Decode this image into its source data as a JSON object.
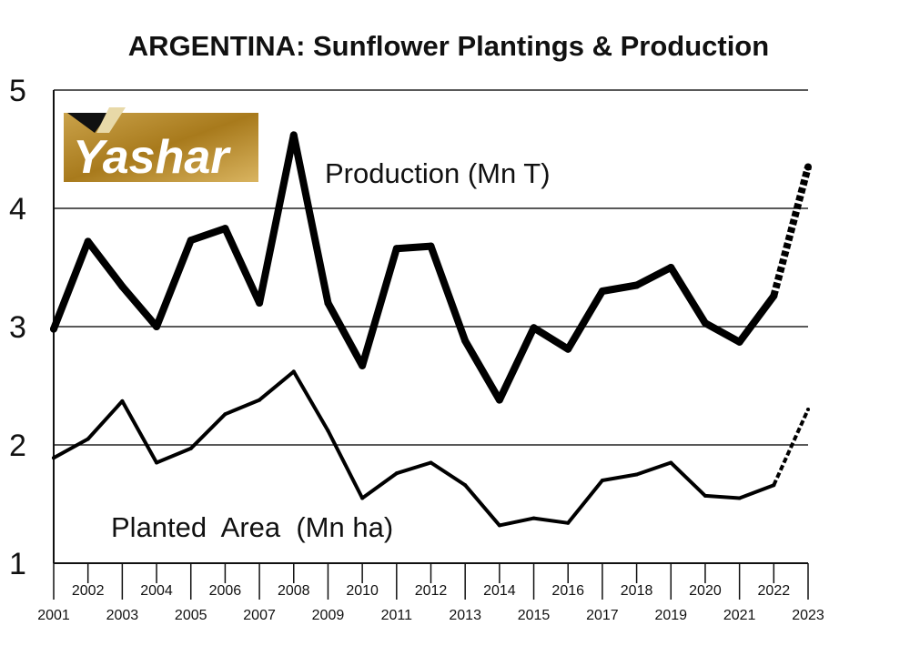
{
  "chart_data": {
    "type": "line",
    "title": "ARGENTINA: Sunflower Plantings & Production",
    "xlabel": "",
    "ylabel": "",
    "ylim": [
      1,
      5
    ],
    "yticks": [
      "1",
      "2",
      "3",
      "4",
      "5"
    ],
    "x": [
      "2001",
      "2002",
      "2003",
      "2004",
      "2005",
      "2006",
      "2007",
      "2008",
      "2009",
      "2010",
      "2011",
      "2012",
      "2013",
      "2014",
      "2015",
      "2016",
      "2017",
      "2018",
      "2019",
      "2020",
      "2021",
      "2022",
      "2023"
    ],
    "grid": true,
    "series": [
      {
        "name": "Production (Mn T)",
        "label": "Production (Mn T)",
        "values": [
          2.98,
          3.72,
          3.34,
          3.0,
          3.73,
          3.83,
          3.2,
          4.62,
          3.2,
          2.67,
          3.66,
          3.68,
          2.88,
          2.38,
          2.99,
          2.81,
          3.3,
          3.35,
          3.5,
          3.03,
          2.87,
          3.26,
          4.35
        ],
        "forecast_from_index": 21
      },
      {
        "name": "Planted Area (Mn ha)",
        "label": "Planted  Area  (Mn ha)",
        "values": [
          1.89,
          2.05,
          2.37,
          1.85,
          1.97,
          2.26,
          2.38,
          2.62,
          2.12,
          1.55,
          1.76,
          1.85,
          1.66,
          1.32,
          1.38,
          1.34,
          1.7,
          1.75,
          1.85,
          1.57,
          1.55,
          1.66,
          2.3
        ],
        "forecast_from_index": 21
      }
    ]
  },
  "logo": {
    "text": "Yashar"
  }
}
